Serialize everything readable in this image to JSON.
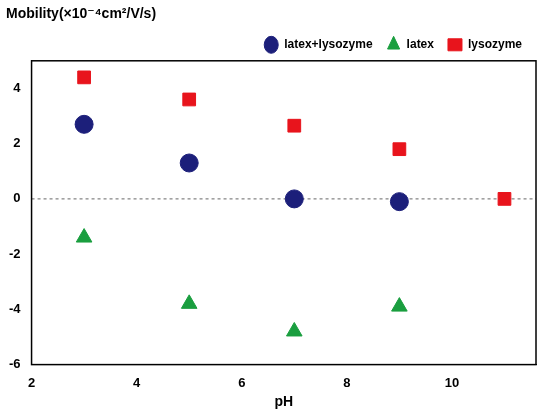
{
  "chart_data": {
    "type": "scatter",
    "y_label": "Mobility(×10⁻⁴cm²/V/s)",
    "x_label": "pH",
    "xlim": [
      2,
      11.6
    ],
    "xticks": [
      2,
      4,
      6,
      8,
      10
    ],
    "ylim": [
      -6,
      5
    ],
    "yticks": [
      -6,
      -4,
      -2,
      0,
      2,
      4
    ],
    "grid": false,
    "legend": "top",
    "reference_lines": [
      {
        "y": 0,
        "line_style": "dashed"
      }
    ],
    "series": [
      {
        "name": "latex+lysozyme",
        "color": "#1c1f7a",
        "marker": "circle",
        "x": [
          3,
          5,
          7,
          9
        ],
        "values": [
          2.7,
          1.3,
          0,
          -0.1
        ]
      },
      {
        "name": "latex",
        "color": "#1a9e3f",
        "marker": "triangle",
        "x": [
          3,
          5,
          7,
          9
        ],
        "values": [
          -1.4,
          -3.8,
          -4.8,
          -3.9
        ]
      },
      {
        "name": "lysozyme",
        "color": "#e8141c",
        "marker": "square",
        "x": [
          3,
          5,
          7,
          9,
          11
        ],
        "values": [
          4.4,
          3.6,
          2.65,
          1.8,
          0
        ]
      }
    ]
  }
}
